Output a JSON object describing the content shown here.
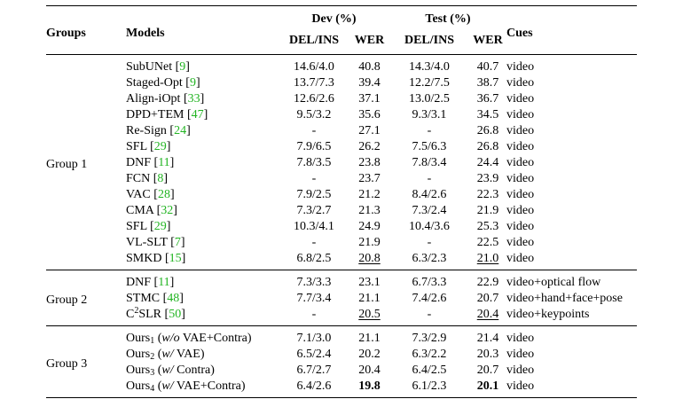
{
  "header": {
    "groups": "Groups",
    "models": "Models",
    "dev": "Dev (%)",
    "test": "Test (%)",
    "cues": "Cues",
    "del_ins": "DEL/INS",
    "wer": "WER"
  },
  "groups": [
    {
      "name": "Group 1",
      "rows": [
        {
          "model": "SubUNet",
          "cite": "9",
          "dev_del": "14.6/4.0",
          "dev_wer": "40.8",
          "test_del": "14.3/4.0",
          "test_wer": "40.7",
          "cues": "video"
        },
        {
          "model": "Staged-Opt",
          "cite": "9",
          "dev_del": "13.7/7.3",
          "dev_wer": "39.4",
          "test_del": "12.2/7.5",
          "test_wer": "38.7",
          "cues": "video"
        },
        {
          "model": "Align-iOpt",
          "cite": "33",
          "dev_del": "12.6/2.6",
          "dev_wer": "37.1",
          "test_del": "13.0/2.5",
          "test_wer": "36.7",
          "cues": "video"
        },
        {
          "model": "DPD+TEM",
          "cite": "47",
          "dev_del": "9.5/3.2",
          "dev_wer": "35.6",
          "test_del": "9.3/3.1",
          "test_wer": "34.5",
          "cues": "video"
        },
        {
          "model": "Re-Sign",
          "cite": "24",
          "dev_del": "-",
          "dev_wer": "27.1",
          "test_del": "-",
          "test_wer": "26.8",
          "cues": "video"
        },
        {
          "model": "SFL",
          "cite": "29",
          "dev_del": "7.9/6.5",
          "dev_wer": "26.2",
          "test_del": "7.5/6.3",
          "test_wer": "26.8",
          "cues": "video"
        },
        {
          "model": "DNF",
          "cite": "11",
          "dev_del": "7.8/3.5",
          "dev_wer": "23.8",
          "test_del": "7.8/3.4",
          "test_wer": "24.4",
          "cues": "video"
        },
        {
          "model": "FCN",
          "cite": "8",
          "dev_del": "-",
          "dev_wer": "23.7",
          "test_del": "-",
          "test_wer": "23.9",
          "cues": "video"
        },
        {
          "model": "VAC",
          "cite": "28",
          "dev_del": "7.9/2.5",
          "dev_wer": "21.2",
          "test_del": "8.4/2.6",
          "test_wer": "22.3",
          "cues": "video"
        },
        {
          "model": "CMA",
          "cite": "32",
          "dev_del": "7.3/2.7",
          "dev_wer": "21.3",
          "test_del": "7.3/2.4",
          "test_wer": "21.9",
          "cues": "video"
        },
        {
          "model": "SFL",
          "cite": "29",
          "dev_del": "10.3/4.1",
          "dev_wer": "24.9",
          "test_del": "10.4/3.6",
          "test_wer": "25.3",
          "cues": "video"
        },
        {
          "model": "VL-SLT",
          "cite": "7",
          "dev_del": "-",
          "dev_wer": "21.9",
          "test_del": "-",
          "test_wer": "22.5",
          "cues": "video"
        },
        {
          "model": "SMKD",
          "cite": "15",
          "dev_del": "6.8/2.5",
          "dev_wer": "20.8",
          "test_del": "6.3/2.3",
          "test_wer": "21.0",
          "cues": "video",
          "dev_wer_style": "u",
          "test_wer_style": "u"
        }
      ]
    },
    {
      "name": "Group 2",
      "rows": [
        {
          "model": "DNF",
          "cite": "11",
          "dev_del": "7.3/3.3",
          "dev_wer": "23.1",
          "test_del": "6.7/3.3",
          "test_wer": "22.9",
          "cues": "video+optical flow"
        },
        {
          "model": "STMC",
          "cite": "48",
          "dev_del": "7.7/3.4",
          "dev_wer": "21.1",
          "test_del": "7.4/2.6",
          "test_wer": "20.7",
          "cues": "video+hand+face+pose"
        },
        {
          "model_html": "C<sup>2</sup>SLR",
          "cite": "50",
          "dev_del": "-",
          "dev_wer": "20.5",
          "test_del": "-",
          "test_wer": "20.4",
          "cues": "video+keypoints",
          "dev_wer_style": "u",
          "test_wer_style": "u"
        }
      ]
    },
    {
      "name": "Group 3",
      "rows": [
        {
          "model_html": "Ours<sub>1</sub> (<i>w/o</i> VAE+Contra)",
          "dev_del": "7.1/3.0",
          "dev_wer": "21.1",
          "test_del": "7.3/2.9",
          "test_wer": "21.4",
          "cues": "video"
        },
        {
          "model_html": "Ours<sub>2</sub> (<i>w/</i> VAE)",
          "dev_del": "6.5/2.4",
          "dev_wer": "20.2",
          "test_del": "6.3/2.2",
          "test_wer": "20.3",
          "cues": "video"
        },
        {
          "model_html": "Ours<sub>3</sub> (<i>w/</i> Contra)",
          "dev_del": "6.7/2.7",
          "dev_wer": "20.4",
          "test_del": "6.4/2.5",
          "test_wer": "20.7",
          "cues": "video"
        },
        {
          "model_html": "Ours<sub>4</sub> (<i>w/</i> VAE+Contra)",
          "dev_del": "6.4/2.6",
          "dev_wer": "19.8",
          "test_del": "6.1/2.3",
          "test_wer": "20.1",
          "cues": "video",
          "dev_wer_style": "bold",
          "test_wer_style": "bold"
        }
      ]
    }
  ],
  "colors": {
    "citation": "#22b422",
    "text": "#000000"
  }
}
